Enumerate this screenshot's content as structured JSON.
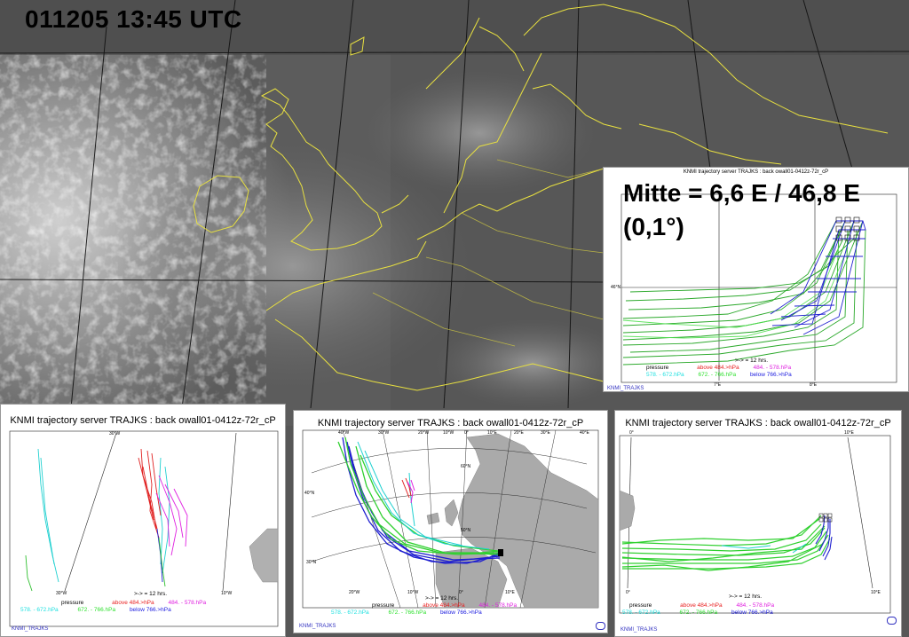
{
  "satellite": {
    "timestamp": "011205 13:45 UTC",
    "coastline_color": "#e8e040"
  },
  "panels": {
    "inset": {
      "title": "KNMI trajectory server TRAJKS : back owall01-0412z-72r_cP",
      "annotation_line1": "Mitte = 6,6 E / 46,8 E",
      "annotation_line2": "(0,1°)",
      "lat_label": "46°N",
      "lon_labels": [
        "7°E",
        "8°E"
      ],
      "credit": "KNMI_TRAJKS"
    },
    "left": {
      "title": "KNMI trajectory server TRAJKS : back owall01-0412z-72r_cP",
      "lon_labels": [
        "30°W",
        "30°W",
        "10°W"
      ],
      "credit": "KNMI_TRAJKS"
    },
    "middle": {
      "title": "KNMI trajectory server TRAJKS : back owall01-0412z-72r_cP",
      "lon_labels_top": [
        "40°W",
        "30°W",
        "20°W",
        "10°W",
        "0°",
        "10°E",
        "20°E",
        "30°E",
        "40°E"
      ],
      "lat_labels": [
        "60°N",
        "50°N",
        "40°N",
        "30°N"
      ],
      "lon_labels_bottom": [
        "20°W",
        "10°W",
        "0°",
        "10°E"
      ],
      "credit": "KNMI_TRAJKS"
    },
    "right": {
      "title": "KNMI trajectory server TRAJKS : back owall01-0412z-72r_cP",
      "lon_labels": [
        "0°",
        "10°E",
        "0°",
        "10°E"
      ],
      "credit": "KNMI_TRAJKS"
    }
  },
  "legend": {
    "pressure_label": "pressure",
    "interval": ">-> = 12 hrs.",
    "above_label": "above 484.>hPa",
    "band1": "484. - 578.hPa",
    "band2": "578. - 672.hPa",
    "band3": "672. - 766.hPa",
    "below_label": "below 766.>hPa",
    "colors": {
      "above": "#e82020",
      "band1": "#e020e0",
      "band2": "#20e0e0",
      "band3": "#30e030",
      "below": "#2020e0"
    }
  }
}
